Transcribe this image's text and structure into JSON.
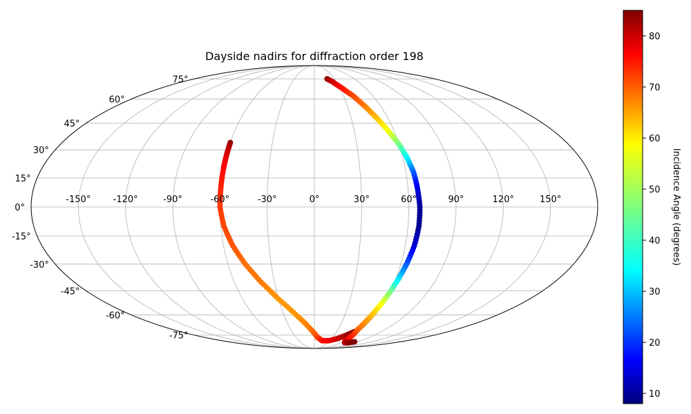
{
  "chart_data": {
    "type": "scatter",
    "projection": "mollweide",
    "title": "Dayside nadirs for diffraction order 198",
    "grid": true,
    "lon_ticks": [
      -150,
      -120,
      -90,
      -60,
      -30,
      0,
      30,
      60,
      90,
      120,
      150
    ],
    "lon_labels": [
      "-150°",
      "-120°",
      "-90°",
      "-60°",
      "-30°",
      "0°",
      "30°",
      "60°",
      "90°",
      "120°",
      "150°"
    ],
    "lat_ticks": [
      75,
      60,
      45,
      30,
      15,
      0,
      -15,
      -30,
      -45,
      -60,
      -75
    ],
    "lat_labels": [
      "75°",
      "60°",
      "45°",
      "30°",
      "15°",
      "0°",
      "-15°",
      "-30°",
      "-45°",
      "-60°",
      "-75°"
    ],
    "colorbar": {
      "label": "Incidence Angle (degrees)",
      "range": [
        8,
        85
      ],
      "ticks": [
        10,
        20,
        30,
        40,
        50,
        60,
        70,
        80
      ],
      "tick_labels": [
        "10",
        "20",
        "30",
        "40",
        "50",
        "60",
        "70",
        "80"
      ],
      "colormap": "jet"
    },
    "tracks": [
      {
        "points": [
          [
            -60,
            34,
            84
          ],
          [
            -60,
            30,
            80
          ],
          [
            -60,
            25,
            77
          ],
          [
            -60,
            20,
            75
          ],
          [
            -60,
            10,
            73
          ],
          [
            -60,
            0,
            71
          ],
          [
            -58,
            -10,
            70
          ],
          [
            -54,
            -20,
            69
          ],
          [
            -48,
            -30,
            67
          ],
          [
            -40,
            -40,
            66
          ],
          [
            -30,
            -50,
            64
          ],
          [
            -18,
            -60,
            64
          ],
          [
            -5,
            -70,
            66
          ],
          [
            5,
            -77,
            70
          ],
          [
            15,
            -80,
            74
          ],
          [
            28,
            -80,
            76
          ],
          [
            40,
            -78,
            79
          ],
          [
            48,
            -75,
            82
          ],
          [
            54,
            -72,
            84
          ]
        ]
      },
      {
        "points": [
          [
            19,
            75,
            84
          ],
          [
            24,
            73,
            80
          ],
          [
            32,
            68,
            75
          ],
          [
            40,
            62,
            70
          ],
          [
            46,
            55,
            66
          ],
          [
            51,
            48,
            61
          ],
          [
            56,
            40,
            55
          ],
          [
            60,
            33,
            46
          ],
          [
            63,
            25,
            36
          ],
          [
            65,
            18,
            25
          ],
          [
            66,
            10,
            16
          ],
          [
            67,
            0,
            10
          ],
          [
            67,
            -10,
            9
          ],
          [
            66,
            -20,
            14
          ],
          [
            64,
            -30,
            24
          ],
          [
            62,
            -38,
            34
          ],
          [
            60,
            -46,
            46
          ],
          [
            58,
            -54,
            56
          ],
          [
            56,
            -62,
            62
          ],
          [
            55,
            -70,
            67
          ],
          [
            60,
            -80,
            76
          ],
          [
            68,
            -82,
            80
          ],
          [
            76,
            -82,
            83
          ],
          [
            84,
            -81,
            85
          ]
        ]
      }
    ]
  }
}
